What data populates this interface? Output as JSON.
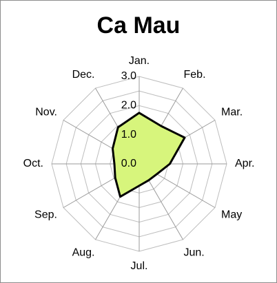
{
  "chart_data": {
    "type": "radar",
    "title": "Ca Mau",
    "categories": [
      "Jan.",
      "Feb.",
      "Mar.",
      "Apr.",
      "May",
      "Jun.",
      "Jul.",
      "Aug.",
      "Sep.",
      "Oct.",
      "Nov.",
      "Dec."
    ],
    "series": [
      {
        "name": "Ca Mau",
        "values": [
          1.75,
          1.5,
          1.8,
          1.05,
          0.7,
          0.65,
          0.75,
          1.3,
          0.95,
          0.85,
          1.05,
          1.45
        ]
      }
    ],
    "rlim": [
      0,
      3.0
    ],
    "ticks": [
      "3.0",
      "2.0",
      "1.0",
      "0.0"
    ],
    "tick_values": [
      3.0,
      2.0,
      1.0,
      0.0
    ],
    "gridlines": [
      0.5,
      1.0,
      1.5,
      2.0,
      2.5,
      3.0
    ],
    "colors": {
      "fill": "#d7f57c",
      "line": "#000000",
      "grid": "#bdbdbd",
      "axis": "#9a9a9a"
    }
  }
}
